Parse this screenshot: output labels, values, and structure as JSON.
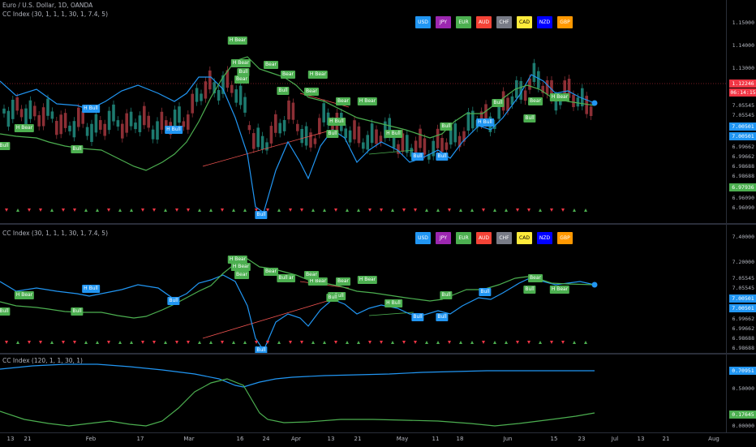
{
  "pane1": {
    "title_symbol": "Euro / U.S. Dollar, 1D, OANDA",
    "title_indicator": "CC Index (30, 1, 1, 1, 30, 1, 7.4, 5)",
    "legend": [
      {
        "label": "USD",
        "color": "#2196f3"
      },
      {
        "label": "JPY",
        "color": "#9c27b0"
      },
      {
        "label": "EUR",
        "color": "#4caf50"
      },
      {
        "label": "AUD",
        "color": "#f44336"
      },
      {
        "label": "CHF",
        "color": "#787b86"
      },
      {
        "label": "CAD",
        "color": "#ffeb3b",
        "text": "#000"
      },
      {
        "label": "NZD",
        "color": "#0000ff"
      },
      {
        "label": "GBP",
        "color": "#ff9800"
      }
    ],
    "axis_labels": [
      "1.15000",
      "1.14000",
      "1.13000",
      "7.05545",
      "7.05545",
      "6.99662",
      "6.99662",
      "6.98688",
      "6.98688",
      "6.96090",
      "6.96090"
    ],
    "axis_tags": [
      {
        "text": "1.12246",
        "color": "#f23645"
      },
      {
        "text": "06:14:15",
        "color": "#f23645"
      },
      {
        "text": "7.00501",
        "color": "#2196f3"
      },
      {
        "text": "7.00501",
        "color": "#2196f3"
      },
      {
        "text": "6.97936",
        "color": "#4caf50"
      }
    ],
    "signals": [
      "H Bear",
      "Bear",
      "Bear",
      "H Bear",
      "Bear",
      "Bear",
      "H Bear",
      "H Bull",
      "Bull",
      "Bull",
      "H Bear",
      "Bear",
      "H Bull",
      "Bull",
      "H Bull",
      "Bull",
      "H Bull",
      "Bull",
      "H Bear",
      "Bull",
      "Bull",
      "Bear",
      "H Bear",
      "H Bull",
      "Bull",
      "Bull",
      "Bull",
      "Bull"
    ]
  },
  "pane2": {
    "title_indicator": "CC Index (30, 1, 1, 1, 30, 1, 7.4, 5)",
    "legend_labels": [
      "USD",
      "JPY",
      "EUR",
      "AUD",
      "CHF",
      "CAD",
      "NZD",
      "GBP"
    ],
    "axis_labels": [
      "7.40000",
      "7.20000",
      "7.05545",
      "7.05545",
      "6.99662",
      "6.99662",
      "6.98688",
      "6.98688"
    ],
    "axis_tags": [
      {
        "text": "7.00501",
        "color": "#2196f3"
      },
      {
        "text": "7.00501",
        "color": "#2196f3"
      }
    ],
    "signals": [
      "H Bear",
      "Bear",
      "Bear",
      "H Bear",
      "Bear",
      "Bear",
      "H Bear",
      "H Bull",
      "Bull",
      "Bull",
      "H Bear",
      "Bear",
      "Bull",
      "Bull",
      "H Bull",
      "Bull",
      "H Bull",
      "Bull",
      "H Bear",
      "Bull",
      "Bull",
      "Bear",
      "H Bear",
      "Bull",
      "Bull",
      "Bull"
    ]
  },
  "pane3": {
    "title_indicator": "CC Index (120, 1, 1, 30, 1)",
    "axis_labels": [
      "0.50000",
      "0.00000"
    ],
    "axis_tags": [
      {
        "text": "0.70951",
        "color": "#2196f3"
      },
      {
        "text": "0.17645",
        "color": "#4caf50"
      }
    ]
  },
  "xaxis": [
    "13",
    "21",
    "Feb",
    "17",
    "Mar",
    "16",
    "24",
    "Apr",
    "13",
    "21",
    "May",
    "11",
    "18",
    "Jun",
    "15",
    "23",
    "Jul",
    "13",
    "21",
    "Aug"
  ],
  "colors": {
    "usd_line": "#2196f3",
    "eur_line": "#4caf50",
    "up_candle": "#26a69a",
    "down_candle": "#ef5350"
  }
}
